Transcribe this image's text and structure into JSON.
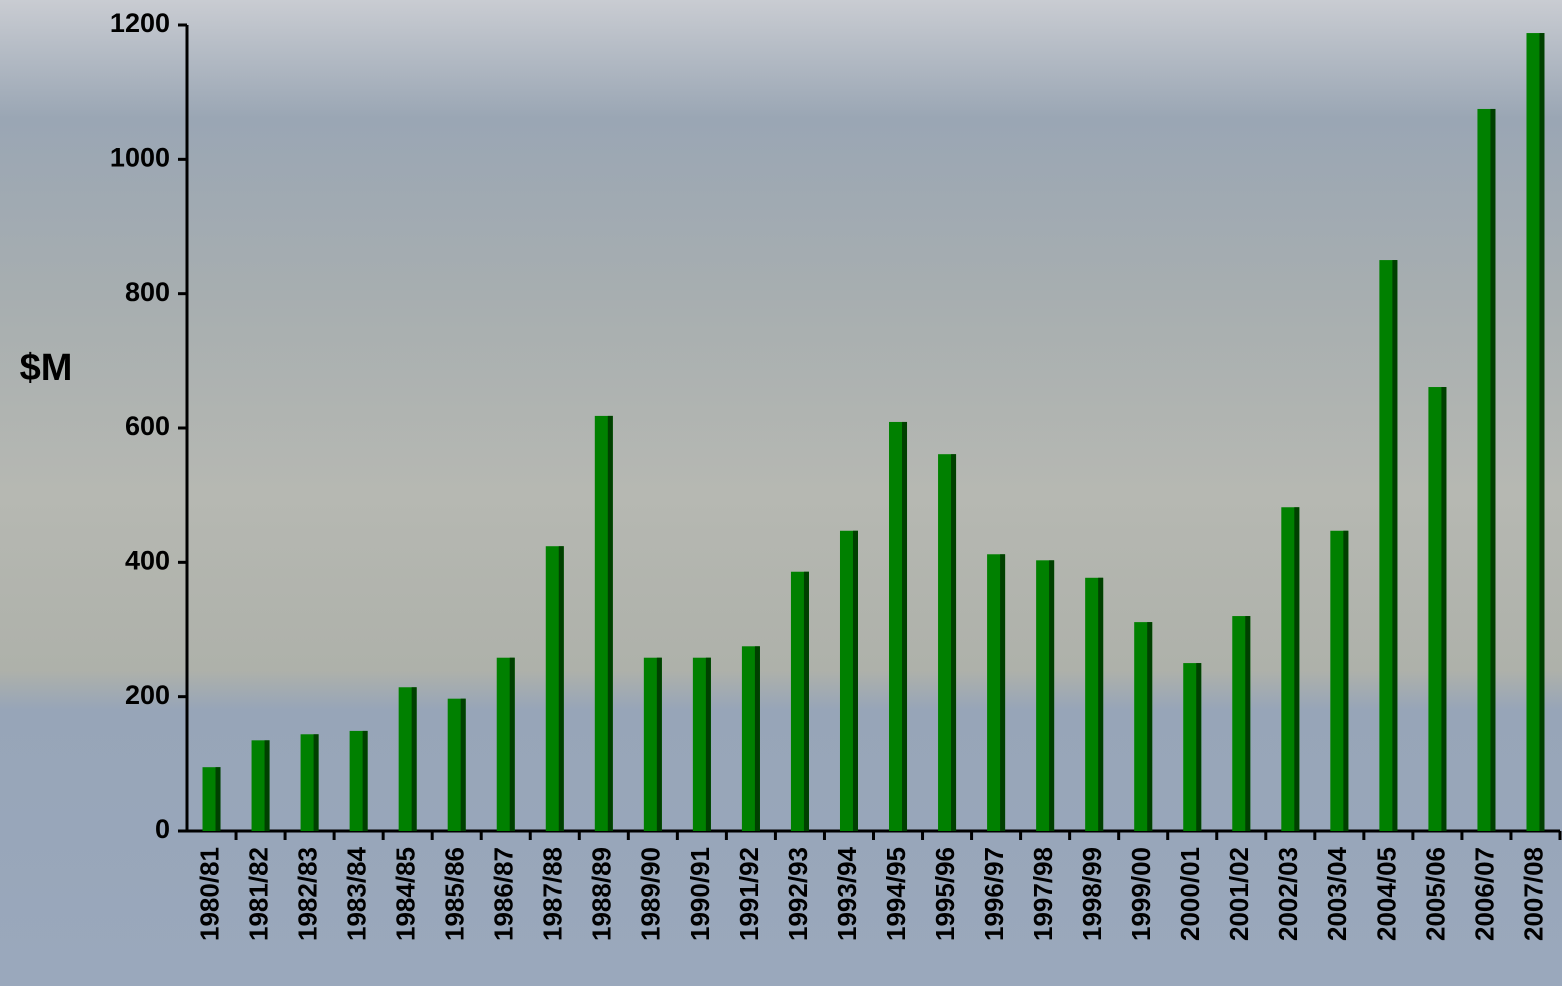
{
  "chart_data": {
    "type": "bar",
    "y_label": "$M",
    "categories": [
      "1980/81",
      "1981/82",
      "1982/83",
      "1983/84",
      "1984/85",
      "1985/86",
      "1986/87",
      "1987/88",
      "1988/89",
      "1989/90",
      "1990/91",
      "1991/92",
      "1992/93",
      "1993/94",
      "1994/95",
      "1995/96",
      "1996/97",
      "1997/98",
      "1998/99",
      "1999/00",
      "2000/01",
      "2001/02",
      "2002/03",
      "2003/04",
      "2004/05",
      "2005/06",
      "2006/07",
      "2007/08"
    ],
    "values": [
      95,
      135,
      144,
      149,
      214,
      197,
      258,
      424,
      618,
      258,
      258,
      275,
      386,
      447,
      609,
      561,
      412,
      403,
      377,
      311,
      250,
      320,
      482,
      447,
      850,
      661,
      1075,
      1188
    ],
    "color": "#008000",
    "ylim": [
      0,
      1200
    ],
    "yticks": [
      0,
      200,
      400,
      600,
      800,
      1000,
      1200
    ]
  }
}
